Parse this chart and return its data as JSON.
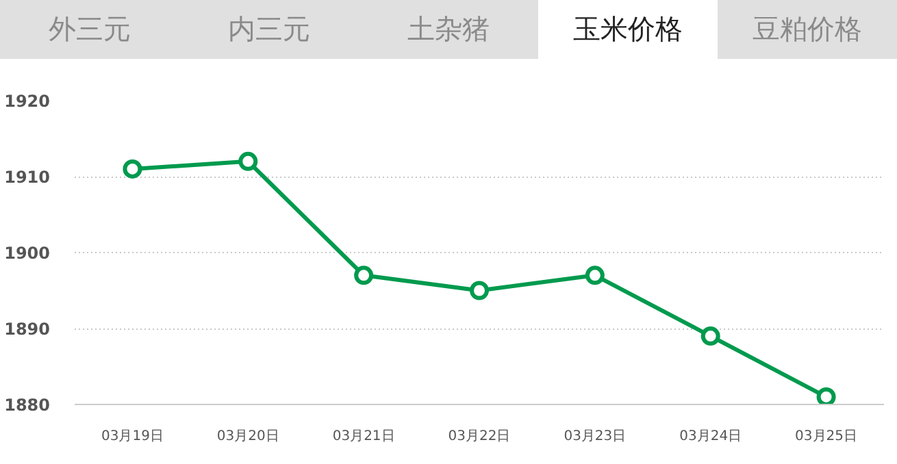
{
  "chart_data": {
    "type": "line",
    "annotations": [
      "外三元",
      "内三元",
      "土杂猪",
      "玉米价格",
      "豆粕价格"
    ],
    "categories": [
      "03月19日",
      "03月20日",
      "03月21日",
      "03月22日",
      "03月23日",
      "03月24日",
      "03月25日"
    ],
    "series": [
      {
        "color": "#009a4e",
        "values": [
          1911,
          1912,
          1897,
          1895,
          1897,
          1889,
          1881
        ]
      }
    ],
    "ylim": [
      1880,
      1920
    ],
    "yticks": [
      1880,
      1890,
      1900,
      1910,
      1920
    ],
    "grid": "y",
    "marker": "circle",
    "line_style": "solid"
  }
}
